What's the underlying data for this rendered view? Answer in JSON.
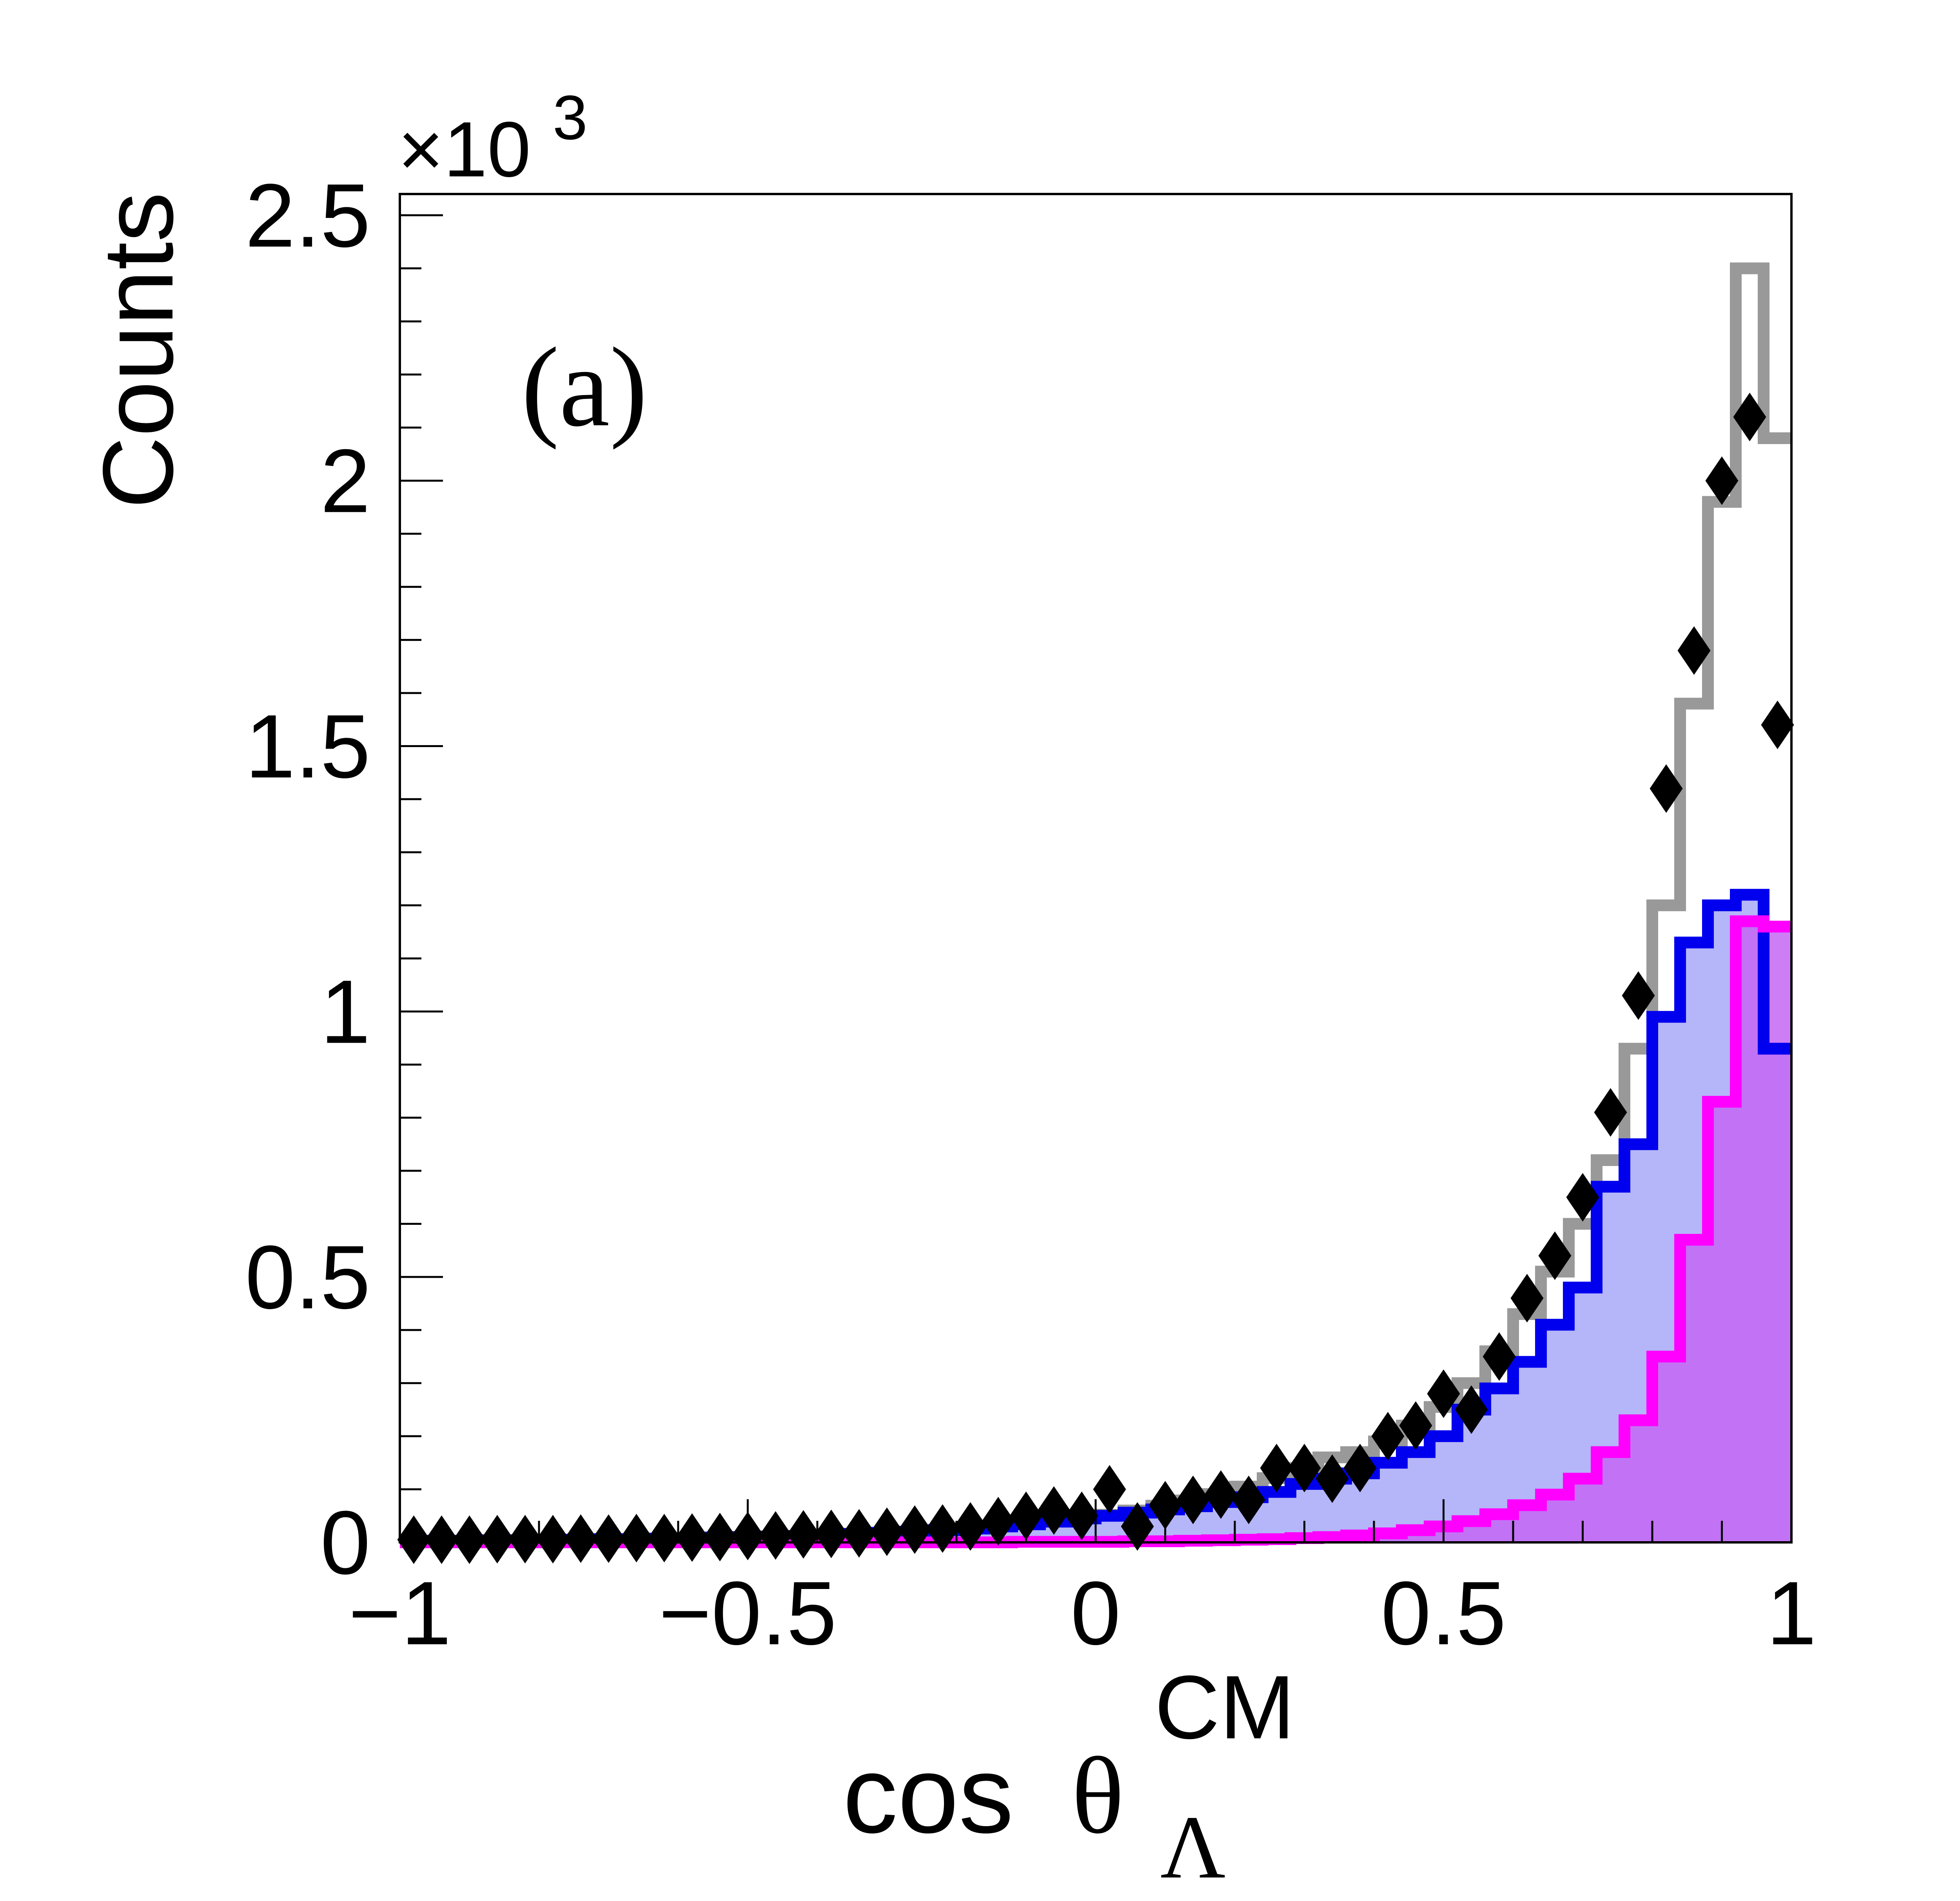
{
  "chart_data": {
    "type": "line",
    "panel_label": "(a)",
    "xlabel": {
      "main": "cos",
      "symbol": "θ",
      "sub": "Λ",
      "sup": "CM"
    },
    "ylabel": "Counts",
    "y_exponent": {
      "base": "×10",
      "power": "3"
    },
    "xlim": [
      -1,
      1
    ],
    "ylim": [
      0,
      2.54
    ],
    "x_ticks": [
      -1,
      -0.5,
      0,
      0.5,
      1
    ],
    "x_tick_labels": [
      "−1",
      "−0.5",
      "0",
      "0.5",
      "1"
    ],
    "y_ticks": [
      0,
      0.5,
      1,
      1.5,
      2,
      2.5
    ],
    "y_tick_labels": [
      "0",
      "0.5",
      "1",
      "1.5",
      "2",
      "2.5"
    ],
    "grid": false,
    "bin_edges": [
      -1.0,
      -0.96,
      -0.92,
      -0.88,
      -0.84,
      -0.8,
      -0.76,
      -0.72,
      -0.68,
      -0.64,
      -0.6,
      -0.56,
      -0.52,
      -0.48,
      -0.44,
      -0.4,
      -0.36,
      -0.32,
      -0.28,
      -0.24,
      -0.2,
      -0.16,
      -0.12,
      -0.08,
      -0.04,
      0.0,
      0.04,
      0.08,
      0.12,
      0.16,
      0.2,
      0.24,
      0.28,
      0.32,
      0.36,
      0.4,
      0.44,
      0.48,
      0.52,
      0.56,
      0.6,
      0.64,
      0.68,
      0.72,
      0.76,
      0.8,
      0.84,
      0.88,
      0.92,
      0.96,
      1.0
    ],
    "series": [
      {
        "kind": "hist_line",
        "color": "#999999",
        "values": [
          0.003,
          0.003,
          0.003,
          0.004,
          0.004,
          0.005,
          0.005,
          0.006,
          0.006,
          0.007,
          0.008,
          0.009,
          0.01,
          0.011,
          0.012,
          0.014,
          0.016,
          0.018,
          0.02,
          0.023,
          0.026,
          0.03,
          0.034,
          0.039,
          0.045,
          0.052,
          0.06,
          0.069,
          0.079,
          0.091,
          0.105,
          0.121,
          0.14,
          0.16,
          0.17,
          0.19,
          0.22,
          0.255,
          0.3,
          0.36,
          0.43,
          0.51,
          0.6,
          0.72,
          0.93,
          1.2,
          1.58,
          1.96,
          2.4,
          2.08
        ]
      },
      {
        "kind": "hist_filled",
        "color": "#0000ee",
        "fill": "#a8a8f8",
        "values": [
          0.003,
          0.003,
          0.003,
          0.004,
          0.004,
          0.005,
          0.005,
          0.006,
          0.006,
          0.007,
          0.008,
          0.009,
          0.01,
          0.011,
          0.012,
          0.014,
          0.016,
          0.018,
          0.02,
          0.023,
          0.026,
          0.03,
          0.034,
          0.039,
          0.045,
          0.05,
          0.056,
          0.062,
          0.068,
          0.076,
          0.085,
          0.095,
          0.11,
          0.12,
          0.13,
          0.15,
          0.17,
          0.2,
          0.25,
          0.29,
          0.34,
          0.41,
          0.48,
          0.67,
          0.75,
          0.99,
          1.13,
          1.2,
          1.22,
          0.93
        ]
      },
      {
        "kind": "hist_filled",
        "color": "#ff00ff",
        "fill": "#c466f4",
        "values": [
          0.0,
          0.0,
          0.0,
          0.0,
          0.0,
          0.0,
          0.0,
          0.0,
          0.0,
          0.0,
          0.0,
          0.0,
          0.0,
          0.0,
          0.0,
          0.0,
          0.0,
          0.0,
          0.0,
          0.0,
          0.0,
          0.0,
          0.001,
          0.001,
          0.001,
          0.001,
          0.002,
          0.002,
          0.003,
          0.004,
          0.005,
          0.006,
          0.008,
          0.01,
          0.013,
          0.017,
          0.023,
          0.03,
          0.04,
          0.053,
          0.07,
          0.09,
          0.12,
          0.17,
          0.23,
          0.35,
          0.57,
          0.83,
          1.17,
          1.16
        ]
      },
      {
        "kind": "markers",
        "color": "#000000",
        "marker": "diamond",
        "x": [
          -0.98,
          -0.94,
          -0.9,
          -0.86,
          -0.82,
          -0.78,
          -0.74,
          -0.7,
          -0.66,
          -0.62,
          -0.58,
          -0.54,
          -0.5,
          -0.46,
          -0.42,
          -0.38,
          -0.34,
          -0.3,
          -0.26,
          -0.22,
          -0.18,
          -0.14,
          -0.1,
          -0.06,
          -0.02,
          0.02,
          0.06,
          0.1,
          0.14,
          0.18,
          0.22,
          0.26,
          0.3,
          0.34,
          0.38,
          0.42,
          0.46,
          0.5,
          0.54,
          0.58,
          0.62,
          0.66,
          0.7,
          0.74,
          0.78,
          0.82,
          0.86,
          0.9,
          0.94,
          0.98
        ],
        "y": [
          0.005,
          0.005,
          0.005,
          0.006,
          0.006,
          0.006,
          0.007,
          0.007,
          0.008,
          0.008,
          0.009,
          0.01,
          0.012,
          0.013,
          0.015,
          0.016,
          0.017,
          0.02,
          0.024,
          0.026,
          0.03,
          0.04,
          0.05,
          0.06,
          0.05,
          0.1,
          0.03,
          0.07,
          0.08,
          0.09,
          0.08,
          0.14,
          0.14,
          0.12,
          0.14,
          0.2,
          0.22,
          0.28,
          0.25,
          0.35,
          0.46,
          0.54,
          0.65,
          0.81,
          1.03,
          1.42,
          1.68,
          2.0,
          2.12,
          1.54
        ]
      }
    ]
  }
}
